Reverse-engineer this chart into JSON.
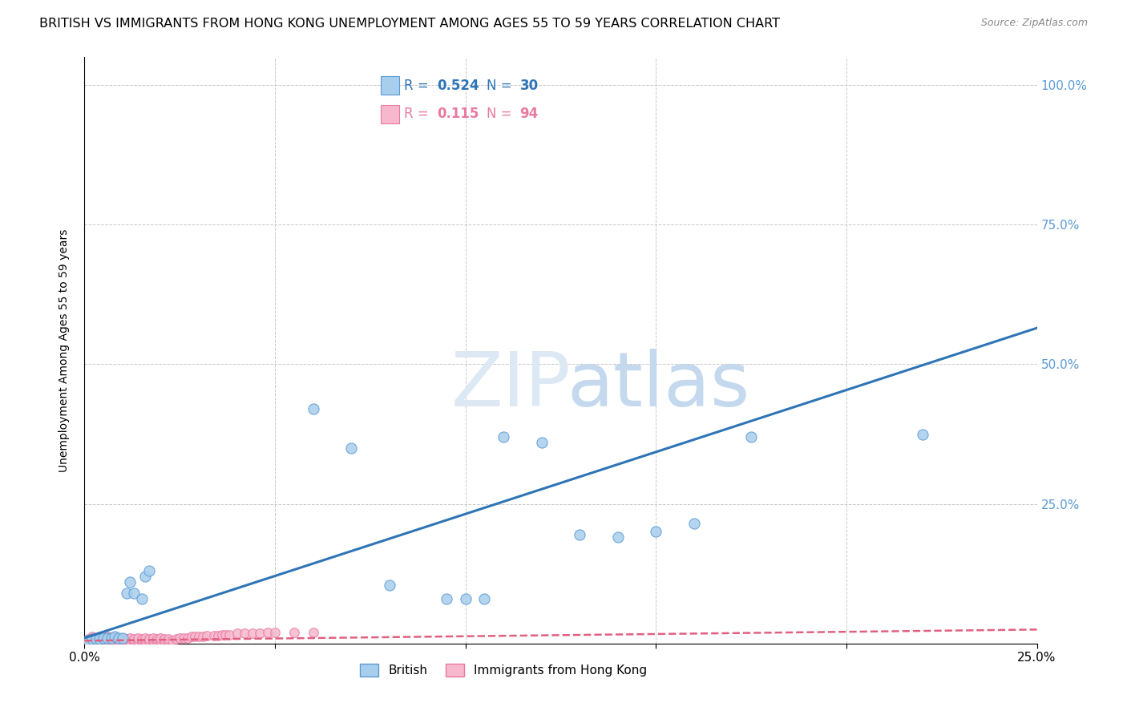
{
  "title": "BRITISH VS IMMIGRANTS FROM HONG KONG UNEMPLOYMENT AMONG AGES 55 TO 59 YEARS CORRELATION CHART",
  "source": "Source: ZipAtlas.com",
  "ylabel": "Unemployment Among Ages 55 to 59 years",
  "xlim": [
    0.0,
    0.25
  ],
  "ylim": [
    0.0,
    1.05
  ],
  "british_R": 0.524,
  "british_N": 30,
  "hk_R": 0.115,
  "hk_N": 94,
  "british_color": "#A8CEED",
  "hk_color": "#F7B8CE",
  "british_edge_color": "#5B9BD5",
  "hk_edge_color": "#E87AA0",
  "british_line_color": "#2E75B6",
  "hk_line_color": "#E06080",
  "right_tick_color": "#5B9BD5",
  "grid_color": "#c8c8c8",
  "background_color": "#ffffff",
  "watermark_color": "#dce9f5",
  "brit_x": [
    0.001,
    0.002,
    0.003,
    0.004,
    0.005,
    0.006,
    0.007,
    0.008,
    0.009,
    0.01,
    0.011,
    0.012,
    0.013,
    0.015,
    0.016,
    0.017,
    0.06,
    0.07,
    0.08,
    0.095,
    0.1,
    0.105,
    0.11,
    0.12,
    0.13,
    0.14,
    0.15,
    0.16,
    0.175,
    0.22
  ],
  "brit_y": [
    0.005,
    0.008,
    0.008,
    0.008,
    0.01,
    0.01,
    0.01,
    0.012,
    0.01,
    0.01,
    0.09,
    0.11,
    0.09,
    0.08,
    0.12,
    0.13,
    0.42,
    0.35,
    0.105,
    0.08,
    0.08,
    0.08,
    0.37,
    0.36,
    0.195,
    0.19,
    0.2,
    0.215,
    0.37,
    0.375
  ],
  "hk_x": [
    0.001,
    0.001,
    0.001,
    0.002,
    0.002,
    0.002,
    0.002,
    0.002,
    0.003,
    0.003,
    0.003,
    0.003,
    0.004,
    0.004,
    0.004,
    0.004,
    0.005,
    0.005,
    0.005,
    0.005,
    0.006,
    0.006,
    0.006,
    0.006,
    0.007,
    0.007,
    0.007,
    0.007,
    0.008,
    0.008,
    0.008,
    0.008,
    0.009,
    0.009,
    0.009,
    0.01,
    0.01,
    0.01,
    0.01,
    0.011,
    0.011,
    0.011,
    0.012,
    0.012,
    0.012,
    0.013,
    0.013,
    0.013,
    0.014,
    0.014,
    0.014,
    0.015,
    0.015,
    0.015,
    0.016,
    0.016,
    0.016,
    0.017,
    0.017,
    0.018,
    0.018,
    0.018,
    0.019,
    0.019,
    0.02,
    0.02,
    0.02,
    0.021,
    0.021,
    0.022,
    0.022,
    0.023,
    0.024,
    0.025,
    0.026,
    0.027,
    0.028,
    0.029,
    0.03,
    0.031,
    0.032,
    0.034,
    0.035,
    0.036,
    0.037,
    0.038,
    0.04,
    0.042,
    0.044,
    0.046,
    0.048,
    0.05,
    0.055,
    0.06
  ],
  "hk_y": [
    0.004,
    0.006,
    0.008,
    0.004,
    0.006,
    0.008,
    0.01,
    0.012,
    0.004,
    0.006,
    0.008,
    0.01,
    0.004,
    0.006,
    0.008,
    0.012,
    0.004,
    0.006,
    0.008,
    0.01,
    0.004,
    0.006,
    0.008,
    0.012,
    0.004,
    0.006,
    0.008,
    0.01,
    0.004,
    0.006,
    0.008,
    0.012,
    0.004,
    0.006,
    0.008,
    0.004,
    0.006,
    0.008,
    0.01,
    0.004,
    0.006,
    0.008,
    0.004,
    0.006,
    0.01,
    0.004,
    0.006,
    0.008,
    0.004,
    0.006,
    0.01,
    0.004,
    0.006,
    0.008,
    0.004,
    0.006,
    0.01,
    0.004,
    0.008,
    0.004,
    0.006,
    0.01,
    0.004,
    0.008,
    0.004,
    0.006,
    0.01,
    0.004,
    0.008,
    0.004,
    0.008,
    0.006,
    0.008,
    0.01,
    0.01,
    0.01,
    0.012,
    0.012,
    0.012,
    0.012,
    0.014,
    0.014,
    0.014,
    0.016,
    0.016,
    0.016,
    0.018,
    0.018,
    0.018,
    0.018,
    0.02,
    0.02,
    0.02,
    0.02
  ],
  "brit_line_x": [
    0.0,
    0.25
  ],
  "brit_line_y": [
    0.01,
    0.565
  ],
  "hk_line_x": [
    0.0,
    0.25
  ],
  "hk_line_y": [
    0.005,
    0.025
  ]
}
